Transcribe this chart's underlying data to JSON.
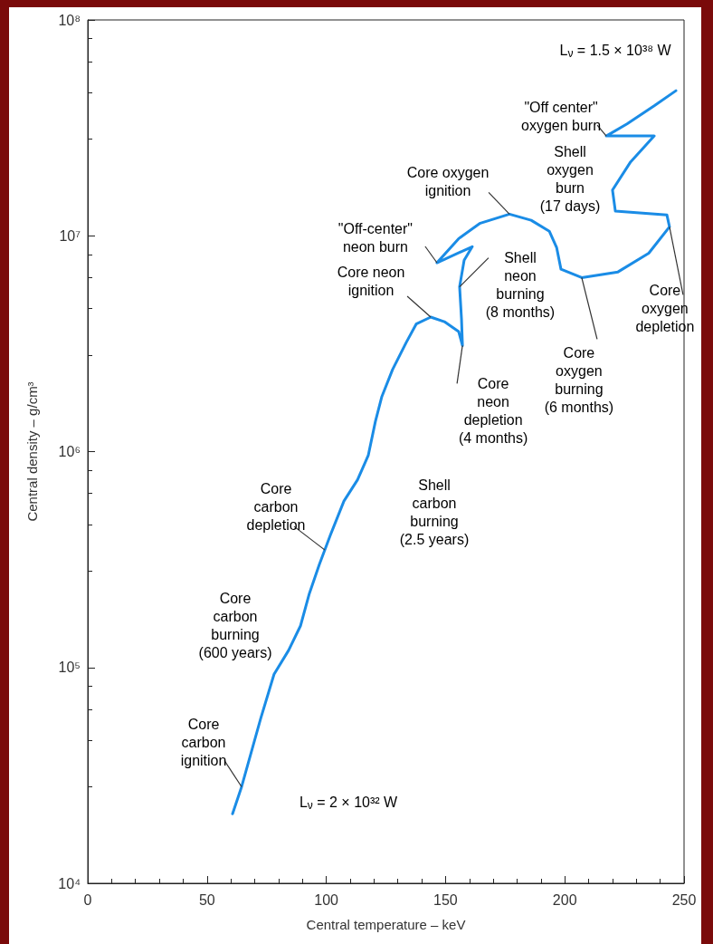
{
  "chart_data": {
    "type": "line",
    "xlabel": "Central temperature – keV",
    "ylabel": "Central density – g/cm³",
    "log": "y",
    "xlim": [
      0,
      250
    ],
    "xticks": [
      0,
      50,
      100,
      150,
      200,
      250
    ],
    "ylim": [
      10000,
      100000000
    ],
    "yticks": [
      {
        "value": 10000,
        "label": "10⁴"
      },
      {
        "value": 100000,
        "label": "10⁵"
      },
      {
        "value": 1000000,
        "label": "10⁶"
      },
      {
        "value": 10000000,
        "label": "10⁷"
      },
      {
        "value": 100000000,
        "label": "10⁸"
      }
    ],
    "grid": false,
    "marker": "none",
    "line_style": "solid",
    "series": [
      {
        "color": "#1a8ce6",
        "x": [
          60.7,
          64.5,
          72.5,
          78.1,
          84.2,
          89.2,
          92.9,
          97.1,
          101.7,
          107.4,
          113.1,
          117.6,
          120.6,
          123.3,
          127.8,
          133.5,
          137.7,
          143.8,
          149.5,
          155.5,
          157.1,
          156.7,
          155.9,
          157.8,
          161.2,
          146.4,
          155.5,
          164.3,
          176.8,
          185.9,
          193.5,
          196.6,
          198.4,
          207.1,
          222.3,
          235.2,
          243.9,
          242.8,
          221.2,
          220.0,
          227.6,
          237.5,
          217.4,
          226.1,
          237.5,
          246.6
        ],
        "values": [
          21000,
          28000,
          58000,
          93000,
          120000,
          156000,
          220000,
          300000,
          410000,
          590000,
          740000,
          960000,
          1380000,
          1800000,
          2400000,
          3200000,
          3900000,
          4200000,
          4000000,
          3600000,
          3100000,
          4100000,
          5800000,
          7700000,
          8900000,
          7500000,
          9700000,
          11400000,
          12600000,
          11800000,
          10500000,
          8800000,
          7000000,
          6400000,
          6800000,
          8300000,
          11000000,
          12500000,
          13000000,
          16300000,
          22000000,
          29000000,
          29000000,
          33000000,
          40000000,
          47000000
        ]
      }
    ],
    "annotations": [
      {
        "text": "Core\ncarbon\nignition",
        "x": 64.5,
        "y": 28000
      },
      "Core\ncarbon\nburning\n(600 years)",
      {
        "text": "Core\ncarbon\ndepletion",
        "x": 99.4,
        "y": 350000
      },
      "Shell\ncarbon\nburning\n(2.5 years)",
      {
        "text": "Core neon\nignition",
        "x": 143.8,
        "y": 4200000
      },
      {
        "text": "\"Off-center\"\nneon burn",
        "x": 146.4,
        "y": 7500000
      },
      {
        "text": "Core oxygen\nignition",
        "x": 176.8,
        "y": 12600000
      },
      {
        "text": "Shell\nneon\nburning\n(8 months)",
        "x": 155.9,
        "y": 5800000
      },
      {
        "text": "Core\nneon\ndepletion\n(4 months)",
        "x": 157.1,
        "y": 3100000
      },
      {
        "text": "\"Off center\"\noxygen burn",
        "x": 217.4,
        "y": 29000000
      },
      "Shell\noxygen\nburn\n(17 days)",
      {
        "text": "Core\noxygen\nburning\n(6 months)",
        "x": 207.1,
        "y": 6400000
      },
      {
        "text": "Core\noxygen\ndepletion",
        "x": 243.9,
        "y": 11000000
      },
      "L$_{ν}$ = 1.5 × 10³⁸ W",
      "L$_{ν}$ = 2 × 10³² W"
    ]
  }
}
